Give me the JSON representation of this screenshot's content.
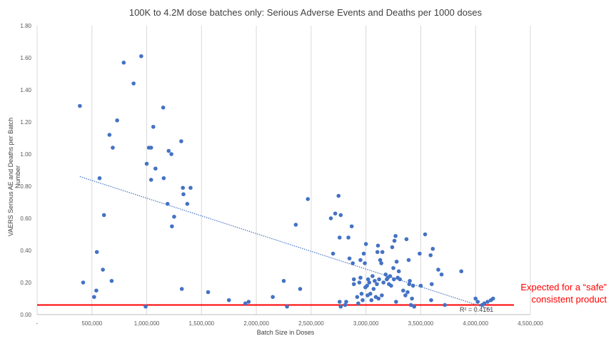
{
  "chart_data": {
    "type": "scatter",
    "title": "100K to 4.2M dose batches only: Serious Adverse Events and Deaths per 1000 doses",
    "xlabel": "Batch Size in Doses",
    "ylabel": "VAERS Serious AE and Deaths per Batch Number",
    "xlim": [
      0,
      4500000
    ],
    "ylim": [
      0,
      1.8
    ],
    "x_ticks": [
      0,
      500000,
      1000000,
      1500000,
      2000000,
      2500000,
      3000000,
      3500000,
      4000000,
      4500000
    ],
    "x_tick_labels": [
      "-",
      "500,000",
      "1,000,000",
      "1,500,000",
      "2,000,000",
      "2,500,000",
      "3,000,000",
      "3,500,000",
      "4,000,000",
      "4,500,000"
    ],
    "y_ticks": [
      0,
      0.2,
      0.4,
      0.6,
      0.8,
      1.0,
      1.2,
      1.4,
      1.6,
      1.8
    ],
    "y_tick_labels": [
      "0.00",
      "0.20",
      "0.40",
      "0.60",
      "0.80",
      "1.00",
      "1.20",
      "1.40",
      "1.60",
      "1.80"
    ],
    "gridlines": "vertical",
    "points": [
      [
        390000,
        1.3
      ],
      [
        420000,
        0.2
      ],
      [
        520000,
        0.11
      ],
      [
        540000,
        0.15
      ],
      [
        545000,
        0.39
      ],
      [
        570000,
        0.85
      ],
      [
        600000,
        0.28
      ],
      [
        610000,
        0.62
      ],
      [
        660000,
        1.12
      ],
      [
        680000,
        0.21
      ],
      [
        690000,
        1.04
      ],
      [
        730000,
        1.21
      ],
      [
        790000,
        1.57
      ],
      [
        880000,
        1.44
      ],
      [
        950000,
        1.61
      ],
      [
        990000,
        0.05
      ],
      [
        1000000,
        0.94
      ],
      [
        1020000,
        1.04
      ],
      [
        1040000,
        1.04
      ],
      [
        1040000,
        0.84
      ],
      [
        1060000,
        1.17
      ],
      [
        1080000,
        0.91
      ],
      [
        1150000,
        1.29
      ],
      [
        1155000,
        0.85
      ],
      [
        1190000,
        0.69
      ],
      [
        1200000,
        1.02
      ],
      [
        1225000,
        1.0
      ],
      [
        1230000,
        0.55
      ],
      [
        1250000,
        0.61
      ],
      [
        1315000,
        1.08
      ],
      [
        1320000,
        0.16
      ],
      [
        1330000,
        0.79
      ],
      [
        1335000,
        0.75
      ],
      [
        1370000,
        0.69
      ],
      [
        1400000,
        0.79
      ],
      [
        1560000,
        0.14
      ],
      [
        1750000,
        0.09
      ],
      [
        1900000,
        0.07
      ],
      [
        1930000,
        0.08
      ],
      [
        2150000,
        0.11
      ],
      [
        2250000,
        0.21
      ],
      [
        2280000,
        0.05
      ],
      [
        2360000,
        0.56
      ],
      [
        2400000,
        0.16
      ],
      [
        2470000,
        0.72
      ],
      [
        2680000,
        0.6
      ],
      [
        2700000,
        0.38
      ],
      [
        2720000,
        0.63
      ],
      [
        2750000,
        0.74
      ],
      [
        2760000,
        0.48
      ],
      [
        2760000,
        0.08
      ],
      [
        2770000,
        0.62
      ],
      [
        2770000,
        0.05
      ],
      [
        2810000,
        0.06
      ],
      [
        2820000,
        0.08
      ],
      [
        2840000,
        0.48
      ],
      [
        2850000,
        0.35
      ],
      [
        2870000,
        0.55
      ],
      [
        2880000,
        0.32
      ],
      [
        2890000,
        0.22
      ],
      [
        2890000,
        0.19
      ],
      [
        2920000,
        0.11
      ],
      [
        2930000,
        0.07
      ],
      [
        2940000,
        0.2
      ],
      [
        2950000,
        0.23
      ],
      [
        2950000,
        0.34
      ],
      [
        2960000,
        0.13
      ],
      [
        2970000,
        0.09
      ],
      [
        2980000,
        0.38
      ],
      [
        2990000,
        0.32
      ],
      [
        2995000,
        0.17
      ],
      [
        3000000,
        0.44
      ],
      [
        3010000,
        0.18
      ],
      [
        3015000,
        0.12
      ],
      [
        3020000,
        0.22
      ],
      [
        3030000,
        0.2
      ],
      [
        3040000,
        0.13
      ],
      [
        3050000,
        0.09
      ],
      [
        3060000,
        0.24
      ],
      [
        3070000,
        0.16
      ],
      [
        3080000,
        0.21
      ],
      [
        3090000,
        0.11
      ],
      [
        3100000,
        0.19
      ],
      [
        3105000,
        0.39
      ],
      [
        3110000,
        0.43
      ],
      [
        3115000,
        0.1
      ],
      [
        3120000,
        0.22
      ],
      [
        3130000,
        0.34
      ],
      [
        3140000,
        0.32
      ],
      [
        3145000,
        0.12
      ],
      [
        3150000,
        0.39
      ],
      [
        3160000,
        0.2
      ],
      [
        3180000,
        0.25
      ],
      [
        3190000,
        0.22
      ],
      [
        3200000,
        0.23
      ],
      [
        3210000,
        0.19
      ],
      [
        3220000,
        0.24
      ],
      [
        3230000,
        0.18
      ],
      [
        3240000,
        0.42
      ],
      [
        3250000,
        0.29
      ],
      [
        3255000,
        0.22
      ],
      [
        3260000,
        0.46
      ],
      [
        3270000,
        0.49
      ],
      [
        3275000,
        0.08
      ],
      [
        3280000,
        0.33
      ],
      [
        3290000,
        0.23
      ],
      [
        3300000,
        0.27
      ],
      [
        3310000,
        0.22
      ],
      [
        3340000,
        0.15
      ],
      [
        3360000,
        0.12
      ],
      [
        3370000,
        0.47
      ],
      [
        3380000,
        0.14
      ],
      [
        3390000,
        0.34
      ],
      [
        3395000,
        0.19
      ],
      [
        3400000,
        0.21
      ],
      [
        3410000,
        0.06
      ],
      [
        3420000,
        0.1
      ],
      [
        3430000,
        0.18
      ],
      [
        3440000,
        0.05
      ],
      [
        3490000,
        0.38
      ],
      [
        3500000,
        0.18
      ],
      [
        3540000,
        0.5
      ],
      [
        3590000,
        0.37
      ],
      [
        3595000,
        0.09
      ],
      [
        3600000,
        0.19
      ],
      [
        3610000,
        0.41
      ],
      [
        3660000,
        0.28
      ],
      [
        3690000,
        0.25
      ],
      [
        3720000,
        0.06
      ],
      [
        3870000,
        0.27
      ],
      [
        4000000,
        0.1
      ],
      [
        4020000,
        0.08
      ],
      [
        4060000,
        0.06
      ],
      [
        4080000,
        0.07
      ],
      [
        4110000,
        0.08
      ],
      [
        4140000,
        0.09
      ],
      [
        4160000,
        0.1
      ]
    ],
    "trendline": {
      "type": "linear",
      "x": [
        390000,
        4150000
      ],
      "y": [
        0.86,
        0.03
      ],
      "label": "R² = 0.4161"
    },
    "reference_line": {
      "y": 0.06
    },
    "annotation": {
      "lines": [
        "Expected for a “safe”",
        "consistent product"
      ]
    },
    "colors": {
      "points": "#4472c4",
      "trendline": "#4472c4",
      "reference": "#ff0000",
      "grid": "#d9d9d9",
      "text": "#595959"
    }
  }
}
